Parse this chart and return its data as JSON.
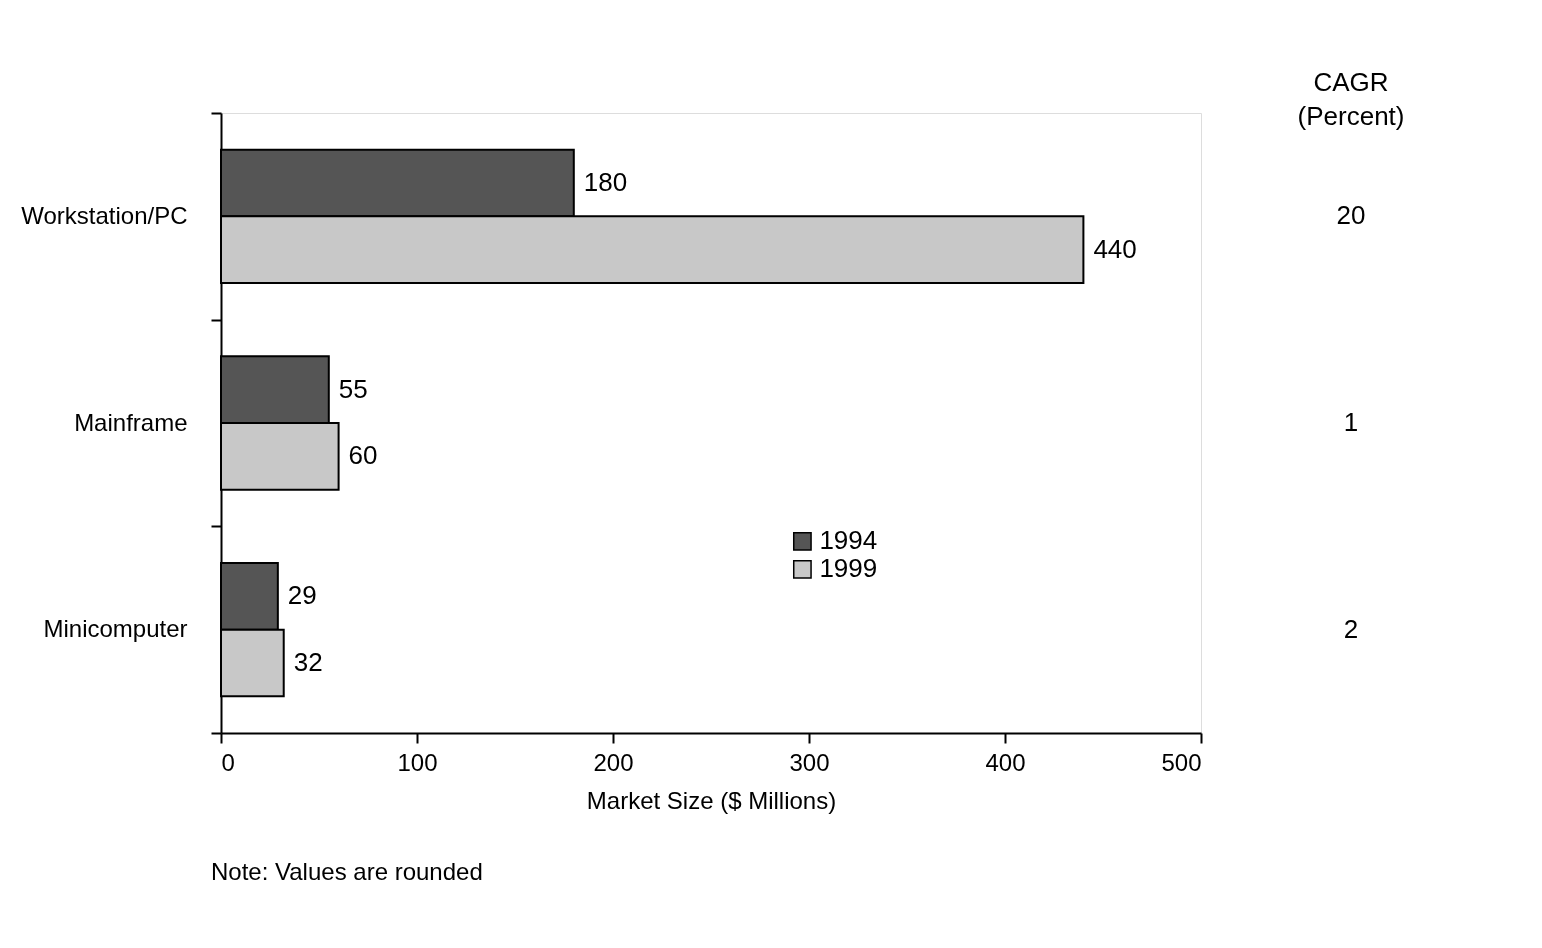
{
  "chart_data": {
    "type": "bar",
    "orientation": "horizontal",
    "categories": [
      "Workstation/PC",
      "Mainframe",
      "Minicomputer"
    ],
    "series": [
      {
        "name": "1994",
        "color": "#555555",
        "values": [
          180,
          55,
          29
        ]
      },
      {
        "name": "1999",
        "color": "#c8c8c8",
        "values": [
          440,
          60,
          32
        ]
      }
    ],
    "xlabel": "Market Size ($ Millions)",
    "xlim": [
      0,
      500
    ],
    "xticks": [
      0,
      100,
      200,
      300,
      400,
      500
    ],
    "data_labels": true,
    "grid": false,
    "legend": "bottom right",
    "annotations": [
      "CAGR (Percent)",
      "20",
      "1",
      "2",
      "Note:  Values are rounded"
    ]
  }
}
